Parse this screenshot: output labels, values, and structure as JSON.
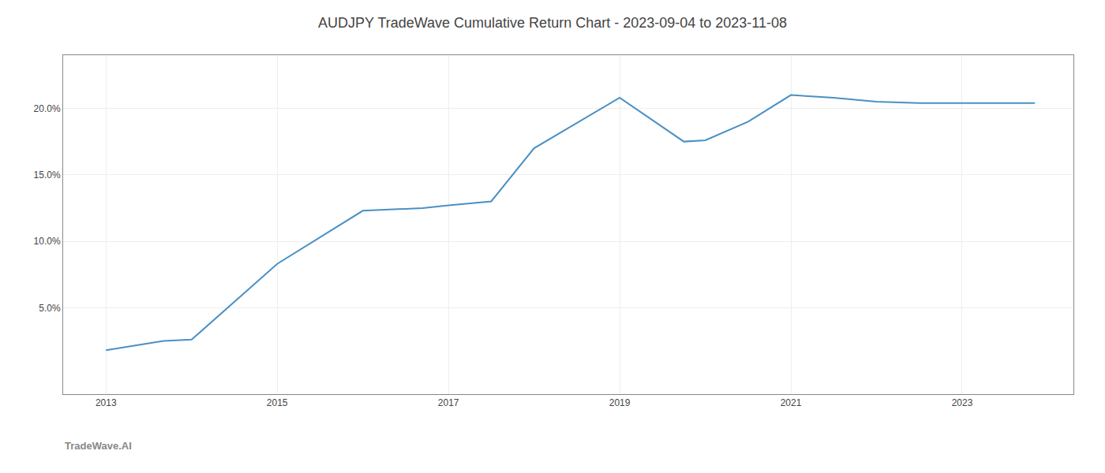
{
  "chart_data": {
    "type": "line",
    "title": "AUDJPY TradeWave Cumulative Return Chart - 2023-09-04 to 2023-11-08",
    "x": [
      2013.0,
      2013.67,
      2014.0,
      2015.0,
      2016.0,
      2016.7,
      2017.0,
      2017.5,
      2018.0,
      2019.0,
      2019.75,
      2020.0,
      2020.5,
      2021.0,
      2021.5,
      2022.0,
      2022.5,
      2023.0,
      2023.85
    ],
    "values": [
      1.8,
      2.5,
      2.6,
      8.3,
      12.3,
      12.5,
      12.7,
      13.0,
      17.0,
      20.8,
      17.5,
      17.6,
      19.0,
      21.0,
      20.8,
      20.5,
      20.4,
      20.4,
      20.4
    ],
    "color": "#4a90c4",
    "xlim": [
      2012.5,
      2024.3
    ],
    "ylim": [
      -1.5,
      24.0
    ],
    "xticks": [
      2013,
      2015,
      2017,
      2019,
      2021,
      2023
    ],
    "yticks": [
      {
        "value": 5.0,
        "label": "5.0%"
      },
      {
        "value": 10.0,
        "label": "10.0%"
      },
      {
        "value": 15.0,
        "label": "15.0%"
      },
      {
        "value": 20.0,
        "label": "20.0%"
      }
    ],
    "grid": true,
    "annotations": [
      "TradeWave.AI"
    ]
  }
}
